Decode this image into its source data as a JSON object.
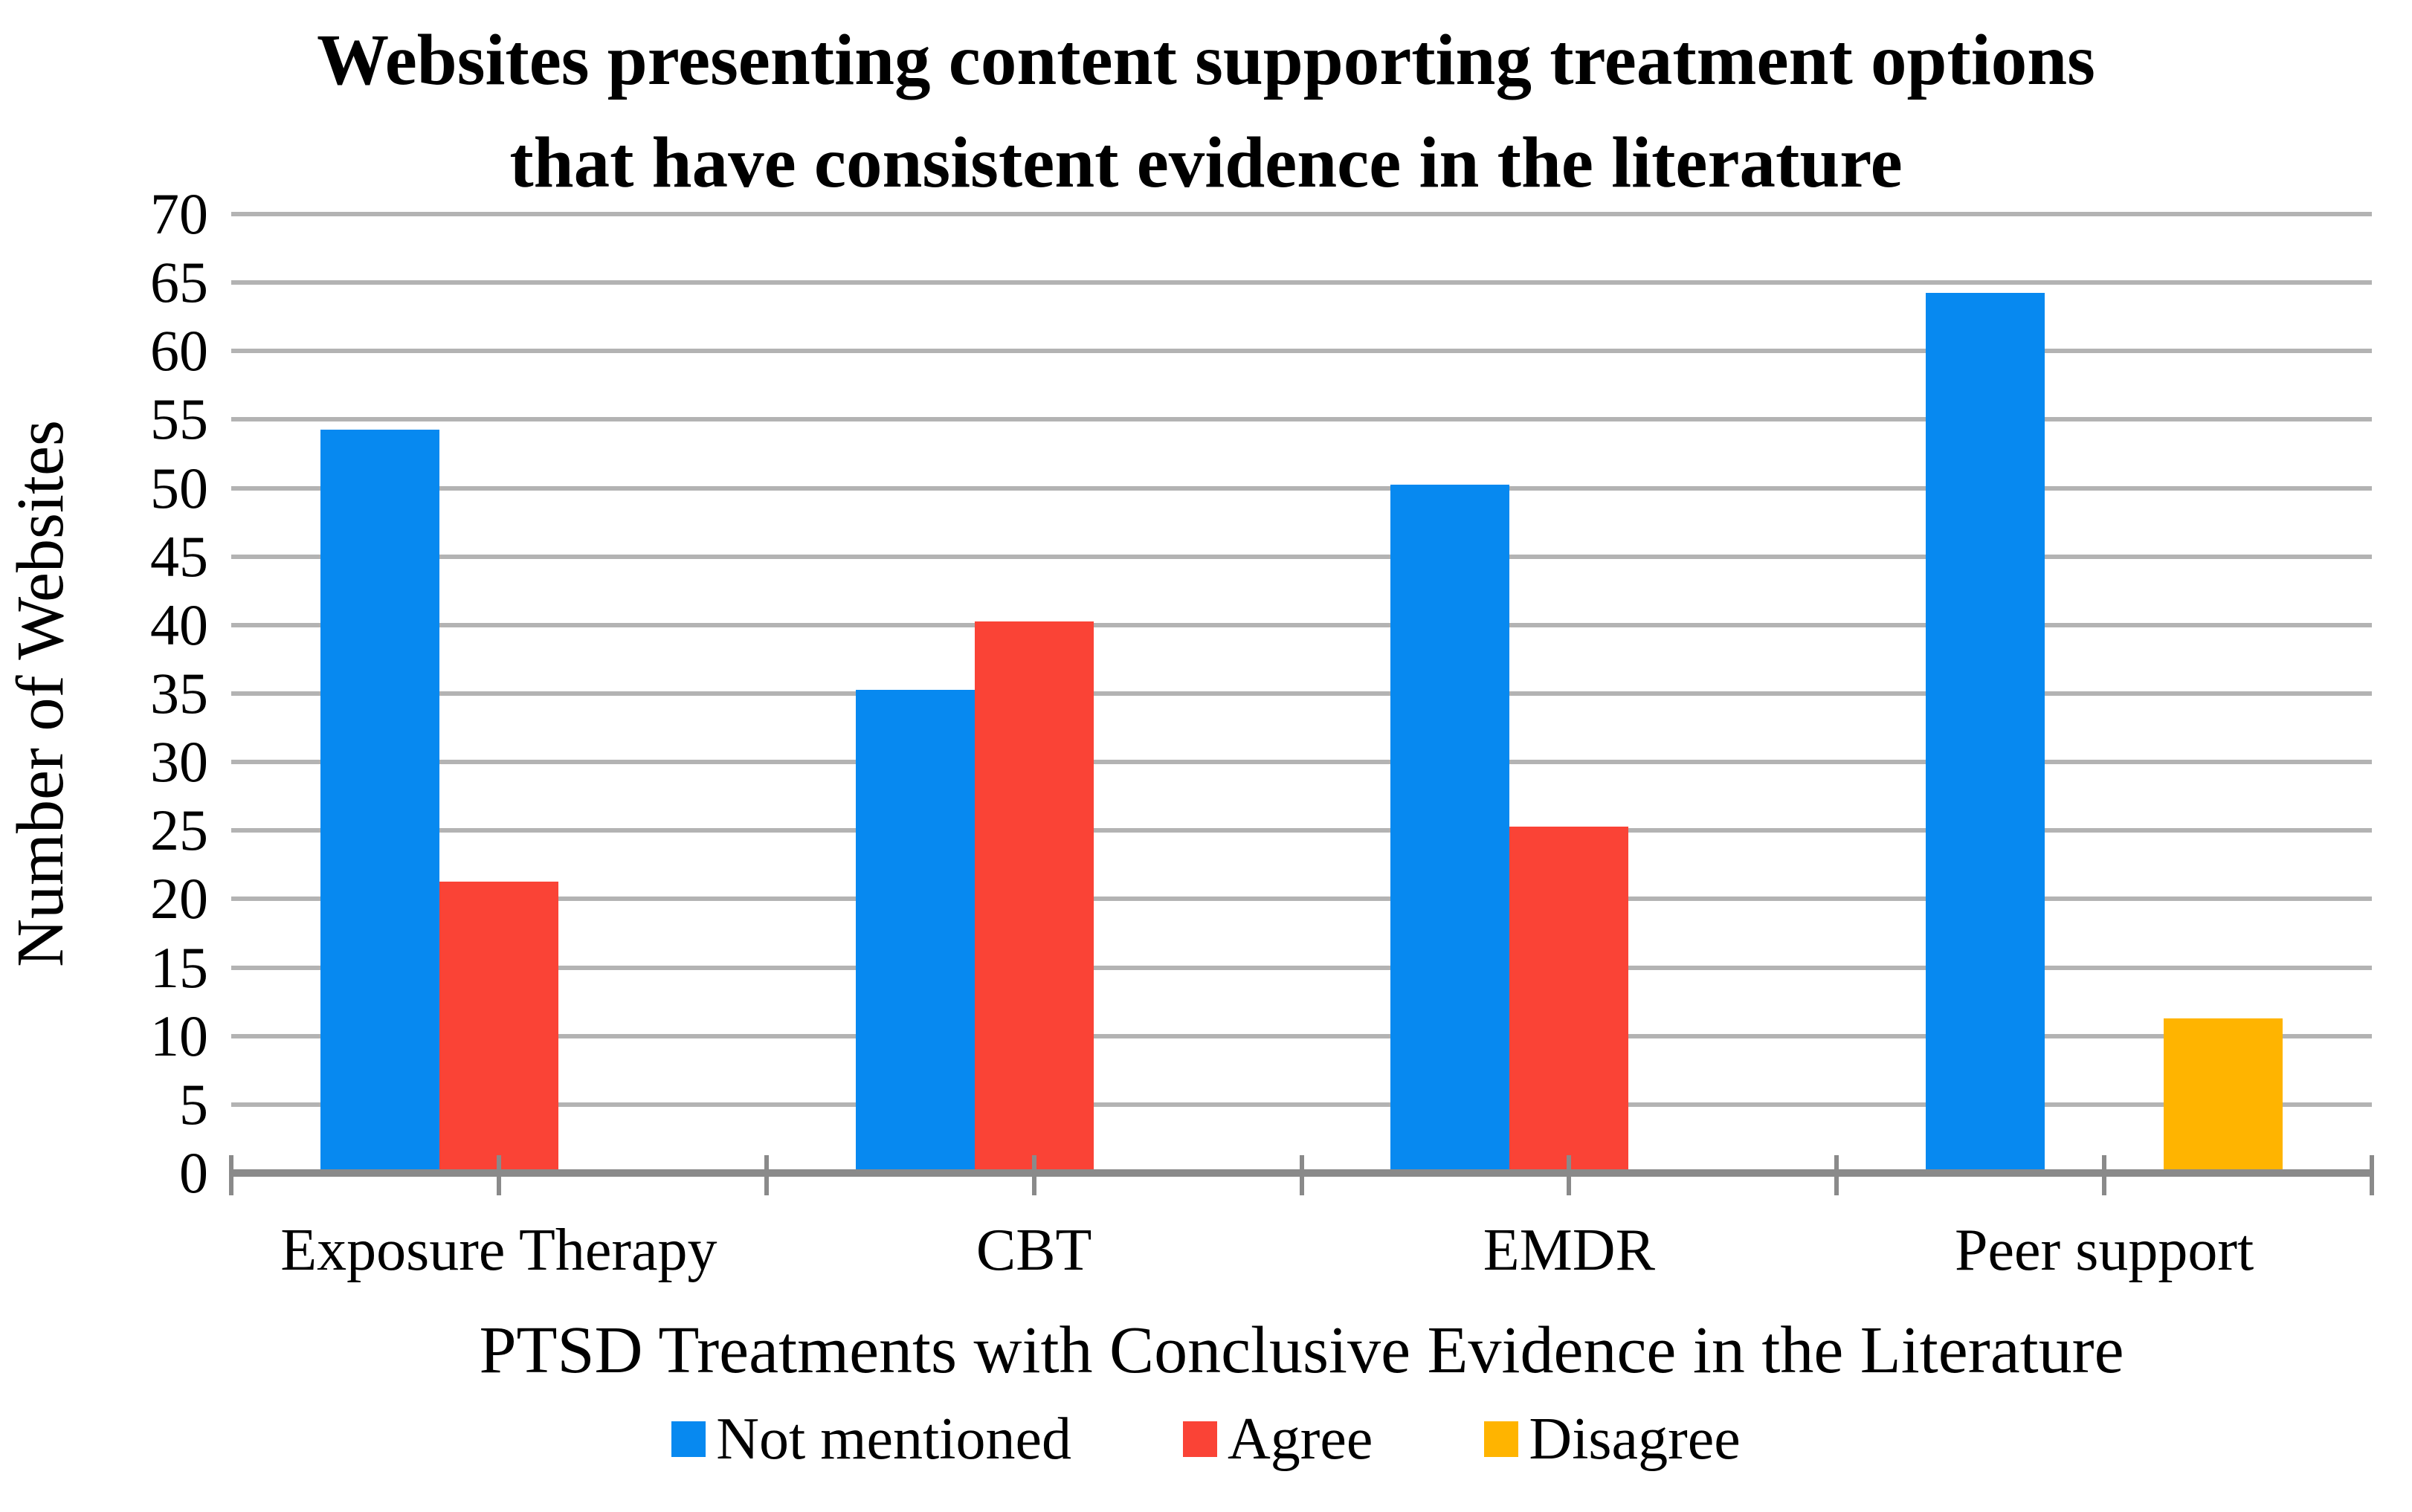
{
  "title": {
    "line1": "Websites presenting content supporting treatment options",
    "line2": "that have consistent evidence in the literature"
  },
  "y_axis": {
    "title": "Number of Websites",
    "tick_labels": [
      "0",
      "5",
      "10",
      "15",
      "20",
      "25",
      "30",
      "35",
      "40",
      "45",
      "50",
      "55",
      "60",
      "65",
      "70"
    ]
  },
  "x_axis": {
    "title": "PTSD Treatments with Conclusive Evidence in the Literature"
  },
  "chart_data": {
    "type": "bar",
    "title": "Websites presenting content supporting treatment options that have consistent evidence in the literature",
    "categories": [
      "Exposure Therapy",
      "CBT",
      "EMDR",
      "Peer support"
    ],
    "series": [
      {
        "name": "Not mentioned",
        "color": "#0789F0",
        "values": [
          54,
          35,
          50,
          64
        ]
      },
      {
        "name": "Agree",
        "color": "#FA4336",
        "values": [
          21,
          40,
          25,
          0
        ]
      },
      {
        "name": "Disagree",
        "color": "#FFB400",
        "values": [
          0,
          0,
          0,
          11
        ]
      }
    ],
    "xlabel": "PTSD Treatments with Conclusive Evidence in the Literature",
    "ylabel": "Number of Websites",
    "ylim": [
      0,
      70
    ],
    "ytick_step": 5,
    "grid": true,
    "legend_position": "bottom"
  },
  "colors": {
    "gridline": "#b3b3b3",
    "axis": "#8a8a8a",
    "background": "#ffffff",
    "text": "#000000"
  }
}
